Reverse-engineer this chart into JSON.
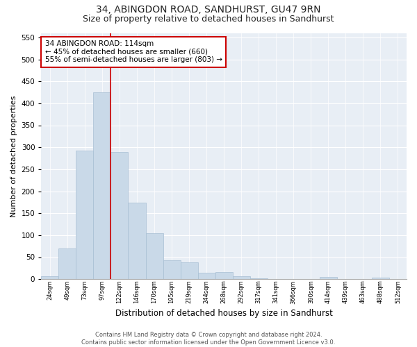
{
  "title1": "34, ABINGDON ROAD, SANDHURST, GU47 9RN",
  "title2": "Size of property relative to detached houses in Sandhurst",
  "xlabel": "Distribution of detached houses by size in Sandhurst",
  "ylabel": "Number of detached properties",
  "bar_values": [
    7,
    70,
    292,
    425,
    290,
    174,
    105,
    43,
    38,
    14,
    16,
    7,
    2,
    1,
    1,
    0,
    5,
    1,
    0,
    3
  ],
  "x_labels": [
    "24sqm",
    "49sqm",
    "73sqm",
    "97sqm",
    "122sqm",
    "146sqm",
    "170sqm",
    "195sqm",
    "219sqm",
    "244sqm",
    "268sqm",
    "292sqm",
    "317sqm",
    "341sqm",
    "366sqm",
    "390sqm",
    "414sqm",
    "439sqm",
    "463sqm",
    "488sqm",
    "512sqm"
  ],
  "bar_color": "#c9d9e8",
  "bar_edge_color": "#a8bfd4",
  "vline_x": 3.5,
  "vline_color": "#cc0000",
  "annotation_text": "34 ABINGDON ROAD: 114sqm\n← 45% of detached houses are smaller (660)\n55% of semi-detached houses are larger (803) →",
  "annotation_box_color": "#ffffff",
  "annotation_box_edge": "#cc0000",
  "ylim": [
    0,
    560
  ],
  "yticks": [
    0,
    50,
    100,
    150,
    200,
    250,
    300,
    350,
    400,
    450,
    500,
    550
  ],
  "bg_color": "#e8eef5",
  "footer1": "Contains HM Land Registry data © Crown copyright and database right 2024.",
  "footer2": "Contains public sector information licensed under the Open Government Licence v3.0.",
  "title1_fontsize": 10,
  "title2_fontsize": 9,
  "xlabel_fontsize": 8.5,
  "ylabel_fontsize": 8
}
